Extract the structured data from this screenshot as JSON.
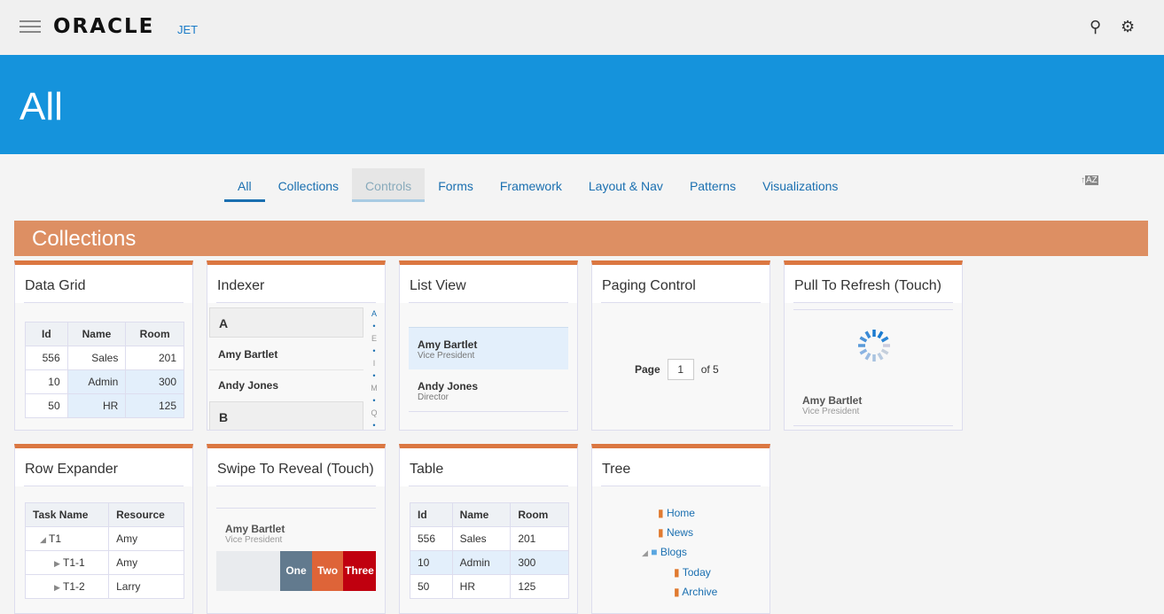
{
  "header": {
    "logo": "ORACLE",
    "product": "JET",
    "search_icon": "search-icon",
    "settings_icon": "gear-icon"
  },
  "banner": {
    "title": "All"
  },
  "tabs": [
    "All",
    "Collections",
    "Controls",
    "Forms",
    "Framework",
    "Layout & Nav",
    "Patterns",
    "Visualizations"
  ],
  "section": "Collections",
  "cards": {
    "datagrid": {
      "title": "Data Grid",
      "headers": [
        "Id",
        "Name",
        "Room"
      ],
      "rows": [
        [
          "556",
          "Sales",
          "201"
        ],
        [
          "10",
          "Admin",
          "300"
        ],
        [
          "50",
          "HR",
          "125"
        ]
      ]
    },
    "indexer": {
      "title": "Indexer",
      "groups": [
        "A",
        "B"
      ],
      "items": [
        "Amy Bartlet",
        "Andy Jones"
      ],
      "letters": [
        "A",
        "•",
        "E",
        "•",
        "I",
        "•",
        "M",
        "•",
        "Q",
        "•"
      ]
    },
    "listview": {
      "title": "List View",
      "items": [
        {
          "name": "Amy Bartlet",
          "role": "Vice President"
        },
        {
          "name": "Andy Jones",
          "role": "Director"
        }
      ]
    },
    "paging": {
      "title": "Paging Control",
      "label": "Page",
      "value": "1",
      "of": "of 5"
    },
    "refresh": {
      "title": "Pull To Refresh (Touch)",
      "name": "Amy Bartlet",
      "role": "Vice President"
    },
    "rowexpander": {
      "title": "Row Expander",
      "headers": [
        "Task Name",
        "Resource"
      ],
      "rows": [
        [
          "T1",
          "Amy"
        ],
        [
          "T1-1",
          "Amy"
        ],
        [
          "T1-2",
          "Larry"
        ]
      ]
    },
    "swipe": {
      "title": "Swipe To Reveal (Touch)",
      "name": "Amy Bartlet",
      "role": "Vice President",
      "actions": [
        "One",
        "Two",
        "Three"
      ]
    },
    "table": {
      "title": "Table",
      "headers": [
        "Id",
        "Name",
        "Room"
      ],
      "rows": [
        [
          "556",
          "Sales",
          "201"
        ],
        [
          "10",
          "Admin",
          "300"
        ],
        [
          "50",
          "HR",
          "125"
        ]
      ]
    },
    "tree": {
      "title": "Tree",
      "nodes": [
        "Home",
        "News",
        "Blogs",
        "Today",
        "Archive"
      ]
    }
  },
  "colors": {
    "accent": "#1593dc",
    "section": "#dd8f63",
    "card_top": "#db7741"
  }
}
